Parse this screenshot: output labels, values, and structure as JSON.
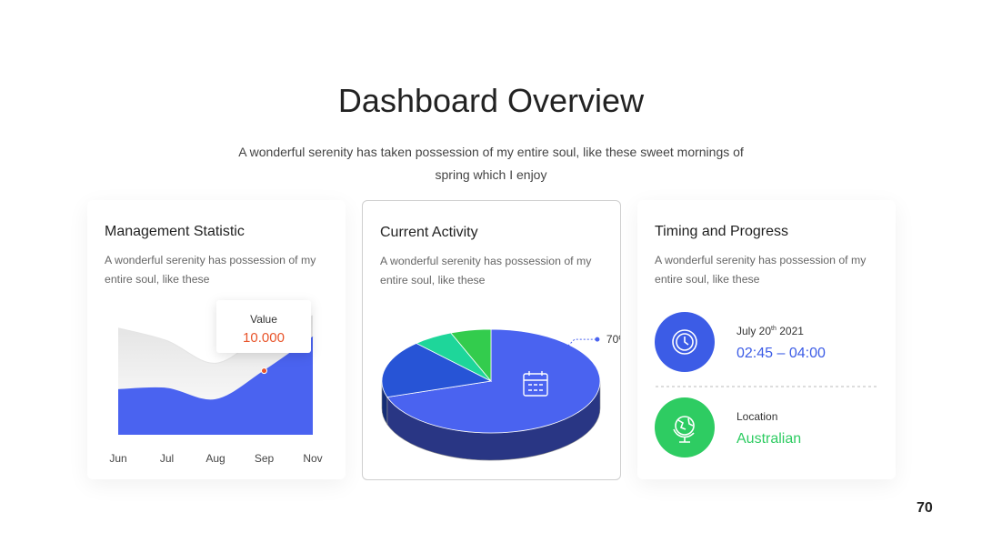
{
  "title": "Dashboard Overview",
  "subtitle": "A wonderful serenity has taken possession of my entire soul, like these sweet mornings of spring which I enjoy",
  "cards": [
    {
      "title": "Management Statistic",
      "text": "A wonderful serenity has possession of my entire soul, like these",
      "chart": {
        "type": "area",
        "categories": [
          "Jun",
          "Jul",
          "Aug",
          "Sep",
          "Nov"
        ],
        "ylim": [
          0,
          100
        ],
        "series": [
          {
            "color": "#e4e4e4",
            "values": [
              85,
              75,
              57,
              80,
              95
            ]
          },
          {
            "color": "#4a63f0",
            "values": [
              36,
              37,
              28,
              51,
              78
            ]
          }
        ],
        "tooltip": {
          "label": "Value",
          "value": "10.000",
          "color": "#e8542a"
        }
      }
    },
    {
      "title": "Current Activity",
      "text": "A wonderful serenity has possession of my entire soul, like these",
      "chart": {
        "type": "pie",
        "values": [
          70,
          18,
          6,
          6
        ],
        "value_labels": [
          "70%",
          null,
          null,
          null
        ],
        "colors": [
          "#4a63f0",
          "#2754d6",
          "#1ed69a",
          "#33cc4d"
        ]
      }
    },
    {
      "title": "Timing and Progress",
      "text": "A wonderful serenity has possession of my entire soul, like these",
      "items": [
        {
          "label": [
            "July 20",
            "th",
            "2021"
          ],
          "value": "02:45 – 04:00",
          "color": "#3c5ce6"
        },
        {
          "label": [
            "Location"
          ],
          "value": "Australian",
          "color": "#2ecc62"
        }
      ]
    }
  ],
  "page_number": 70
}
